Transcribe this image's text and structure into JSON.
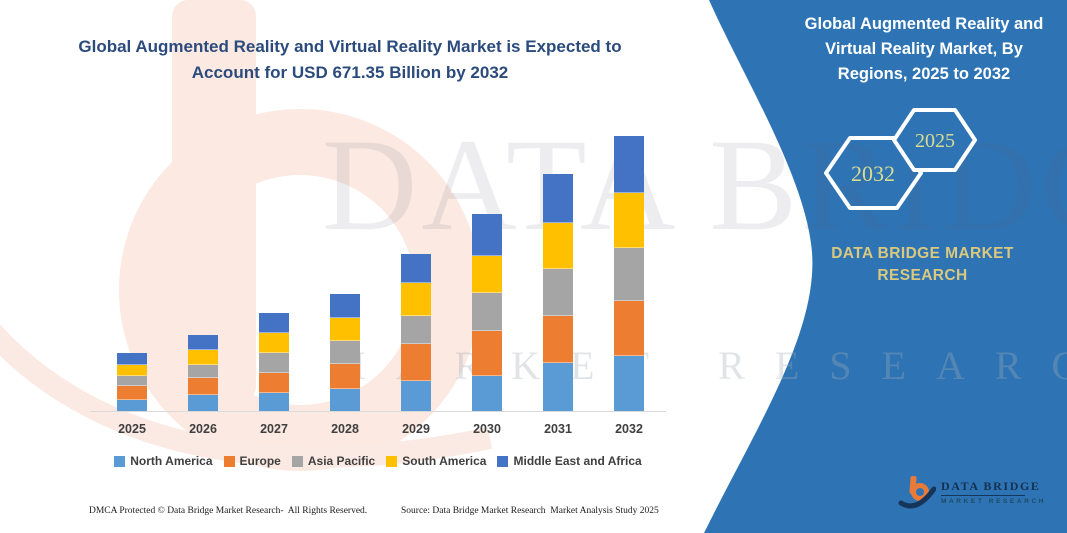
{
  "main": {
    "title": "Global Augmented Reality and Virtual Reality Market is Expected to Account for USD 671.35 Billion by 2032"
  },
  "chart_data": {
    "type": "bar",
    "stacked": true,
    "title": "Global Augmented Reality and Virtual Reality Market, By Regions, 2025 to 2032",
    "unit": "USD Billion",
    "xlabel": "",
    "ylabel": "",
    "ylim": [
      0,
      700
    ],
    "grid": false,
    "legend_position": "bottom",
    "categories": [
      "2025",
      "2026",
      "2027",
      "2028",
      "2029",
      "2030",
      "2031",
      "2032"
    ],
    "series": [
      {
        "name": "North America",
        "color": "#5B9BD5",
        "values": [
          27.6,
          39.1,
          43.2,
          53.0,
          73.2,
          85.4,
          117.9,
          134.3
        ]
      },
      {
        "name": "Europe",
        "color": "#ED7D31",
        "values": [
          32.7,
          40.8,
          48.8,
          61.0,
          89.6,
          109.8,
          114.0,
          134.3
        ]
      },
      {
        "name": "Asia Pacific",
        "color": "#A5A5A5",
        "values": [
          24.4,
          32.5,
          48.8,
          56.9,
          69.1,
          93.5,
          114.0,
          130.1
        ]
      },
      {
        "name": "South America",
        "color": "#FFC000",
        "values": [
          28.3,
          36.6,
          48.8,
          56.9,
          81.3,
          89.6,
          114.0,
          134.3
        ]
      },
      {
        "name": "Middle East and Africa",
        "color": "#4472C4",
        "values": [
          28.6,
          36.6,
          48.8,
          56.9,
          69.1,
          101.8,
          117.9,
          138.4
        ]
      }
    ],
    "anchor_total_2032": 671.35
  },
  "side_panel": {
    "title": "Global Augmented Reality and Virtual Reality Market, By Regions, 2025 to 2032",
    "hexagon_back_label": "2032",
    "hexagon_front_label": "2025",
    "brand_line1": "DATA BRIDGE MARKET",
    "brand_line2": "RESEARCH",
    "logo_name": "DATA BRIDGE",
    "logo_subtitle": "MARKET RESEARCH",
    "colors": {
      "panel_blue": "#2E74B5",
      "brand_gold": "#D9C87E",
      "hex_text": "#D8DB92",
      "logo_orange": "#E87A3A",
      "logo_navy": "#16355A"
    }
  },
  "watermark": {
    "text_top": "DATA BRIDGE",
    "text_bottom": "MARKET RESEARCH"
  },
  "footer": {
    "dmca": "DMCA Protected © Data Bridge Market Research-  All Rights Reserved.",
    "source": "Source: Data Bridge Market Research  Market Analysis Study 2025"
  }
}
